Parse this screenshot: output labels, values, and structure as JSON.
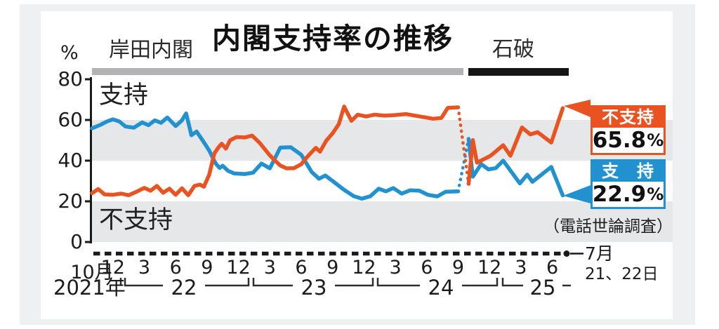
{
  "header": {
    "title": "内閣支持率の推移",
    "kishida_label": "岸田内閣",
    "ishiba_label": "石破"
  },
  "axes": {
    "unit_label": "%",
    "y_ticks": [
      "80",
      "60",
      "40",
      "20",
      "0"
    ],
    "x_month_labels": [
      {
        "text": "10月",
        "month": 0
      },
      {
        "text": "12",
        "month": 2
      },
      {
        "text": "3",
        "month": 5
      },
      {
        "text": "6",
        "month": 8
      },
      {
        "text": "9",
        "month": 11
      },
      {
        "text": "12",
        "month": 14
      },
      {
        "text": "3",
        "month": 17
      },
      {
        "text": "6",
        "month": 20
      },
      {
        "text": "9",
        "month": 23
      },
      {
        "text": "12",
        "month": 26
      },
      {
        "text": "3",
        "month": 29
      },
      {
        "text": "6",
        "month": 32
      },
      {
        "text": "9",
        "month": 35
      },
      {
        "text": "12",
        "month": 38
      },
      {
        "text": "3",
        "month": 41
      },
      {
        "text": "6",
        "month": 44
      }
    ],
    "year_labels": [
      {
        "text": "2021年"
      },
      {
        "text": "22"
      },
      {
        "text": "23"
      },
      {
        "text": "24"
      },
      {
        "text": "25"
      }
    ],
    "end_date_month": "7月",
    "end_date_days": "21、22日"
  },
  "annotations": {
    "approve_inline_label": "支持",
    "disapprove_inline_label": "不支持",
    "source_note": "（電話世論調査）",
    "disapprove_box": {
      "label": "不支持",
      "value": "65.8",
      "unit": "%"
    },
    "approve_box": {
      "label": "支　持",
      "value": "22.9",
      "unit": "%"
    }
  },
  "colors": {
    "approve": "#2191d0",
    "disapprove": "#e95322",
    "band": "#e6e7e9",
    "kishida_bar": "#b2b2b4",
    "ishiba_bar": "#161616",
    "axis": "#1a1a1a"
  },
  "chart_data": {
    "type": "line",
    "title": "内閣支持率の推移",
    "subtitle_source": "（電話世論調査）",
    "x_unit": "months since 2021-10 (0 = Oct 2021, 45 = Jul 2025, surveys roughly monthly)",
    "ylabel": "%",
    "ylim": [
      0,
      80
    ],
    "y_gridbands": [
      [
        40,
        60
      ],
      [
        0,
        20
      ]
    ],
    "cabinet_periods": [
      {
        "name": "岸田内閣",
        "from_month": 0,
        "to_month": 35.5
      },
      {
        "name": "石破",
        "from_month": 36,
        "to_month": 45
      }
    ],
    "final_values": {
      "不支持": 65.8,
      "支持": 22.9
    },
    "series": [
      {
        "name": "支持（岸田内閣）",
        "role": "approve",
        "segment": "kishida",
        "style": "solid",
        "color": "#2191d0",
        "points": [
          [
            0,
            55.9
          ],
          [
            0.8,
            57.6
          ],
          [
            1.4,
            59.2
          ],
          [
            2,
            60.3
          ],
          [
            2.6,
            59.3
          ],
          [
            3.2,
            56.8
          ],
          [
            4,
            56.2
          ],
          [
            4.8,
            58.8
          ],
          [
            5.4,
            57.4
          ],
          [
            6,
            59.8
          ],
          [
            6.6,
            58.6
          ],
          [
            7.2,
            61.2
          ],
          [
            8,
            57.0
          ],
          [
            8.6,
            59.8
          ],
          [
            9,
            63.2
          ],
          [
            9.5,
            52.5
          ],
          [
            10,
            54.3
          ],
          [
            10.6,
            49.8
          ],
          [
            11.2,
            45.0
          ],
          [
            11.8,
            38.8
          ],
          [
            12.2,
            36.4
          ],
          [
            12.5,
            37.5
          ],
          [
            13,
            35.0
          ],
          [
            13.6,
            33.7
          ],
          [
            14.6,
            33.4
          ],
          [
            15.4,
            34.1
          ],
          [
            16.2,
            38.6
          ],
          [
            17,
            36.2
          ],
          [
            18,
            46.4
          ],
          [
            19,
            46.6
          ],
          [
            20,
            42.9
          ],
          [
            21,
            34.4
          ],
          [
            21.7,
            31.1
          ],
          [
            22.3,
            32.7
          ],
          [
            23,
            30.0
          ],
          [
            24,
            26.0
          ],
          [
            25,
            22.6
          ],
          [
            25.8,
            21.3
          ],
          [
            26.6,
            22.5
          ],
          [
            27.4,
            26.2
          ],
          [
            28.1,
            24.9
          ],
          [
            28.8,
            26.5
          ],
          [
            29.6,
            23.8
          ],
          [
            30.4,
            25.4
          ],
          [
            31.3,
            25.2
          ],
          [
            32.1,
            23.2
          ],
          [
            33,
            22.4
          ],
          [
            33.8,
            24.7
          ],
          [
            35,
            24.9
          ]
        ]
      },
      {
        "name": "支持（政権交代）",
        "role": "approve",
        "segment": "transition",
        "style": "dotted",
        "color": "#2191d0",
        "points": [
          [
            35,
            24.9
          ],
          [
            36,
            50.7
          ]
        ]
      },
      {
        "name": "支持（石破内閣）",
        "role": "approve",
        "segment": "ishiba",
        "style": "solid",
        "color": "#2191d0",
        "points": [
          [
            36,
            50.7
          ],
          [
            36.4,
            32.1
          ],
          [
            37.2,
            38.3
          ],
          [
            37.9,
            35.7
          ],
          [
            38.6,
            36.3
          ],
          [
            39.3,
            40.0
          ],
          [
            40.9,
            28.8
          ],
          [
            41.6,
            33.1
          ],
          [
            42.1,
            29.6
          ],
          [
            43.9,
            36.9
          ],
          [
            45,
            22.9
          ]
        ]
      },
      {
        "name": "不支持（岸田内閣）",
        "role": "disapprove",
        "segment": "kishida",
        "style": "solid",
        "color": "#e95322",
        "points": [
          [
            0,
            24.0
          ],
          [
            0.6,
            26.0
          ],
          [
            1.2,
            23.4
          ],
          [
            2,
            23.2
          ],
          [
            2.8,
            23.8
          ],
          [
            3.5,
            23.0
          ],
          [
            4.2,
            24.6
          ],
          [
            5,
            26.6
          ],
          [
            5.6,
            25.2
          ],
          [
            6.2,
            27.6
          ],
          [
            6.8,
            24.2
          ],
          [
            7.4,
            26.2
          ],
          [
            8,
            23.2
          ],
          [
            8.6,
            26.4
          ],
          [
            9.2,
            23.0
          ],
          [
            9.8,
            27.6
          ],
          [
            10.3,
            28.2
          ],
          [
            10.7,
            27.2
          ],
          [
            11.2,
            33.0
          ],
          [
            11.7,
            43.6
          ],
          [
            12.1,
            46.6
          ],
          [
            12.4,
            48.3
          ],
          [
            12.8,
            45.9
          ],
          [
            13.2,
            50.0
          ],
          [
            13.8,
            51.6
          ],
          [
            14.6,
            51.4
          ],
          [
            15.3,
            52.3
          ],
          [
            16,
            48.9
          ],
          [
            17,
            42.6
          ],
          [
            17.5,
            40.0
          ],
          [
            18,
            37.6
          ],
          [
            18.6,
            36.2
          ],
          [
            19.3,
            36.3
          ],
          [
            20,
            38.2
          ],
          [
            20.5,
            41.4
          ],
          [
            21,
            44.2
          ],
          [
            21.4,
            46.3
          ],
          [
            21.8,
            44.4
          ],
          [
            22.4,
            49.9
          ],
          [
            23,
            53.4
          ],
          [
            23.6,
            58.0
          ],
          [
            24.1,
            66.6
          ],
          [
            24.8,
            59.6
          ],
          [
            25.4,
            62.6
          ],
          [
            26.2,
            61.7
          ],
          [
            27,
            62.6
          ],
          [
            28,
            62.1
          ],
          [
            29,
            62.4
          ],
          [
            30,
            62.9
          ],
          [
            31,
            62.0
          ],
          [
            31.8,
            61.3
          ],
          [
            32.6,
            60.6
          ],
          [
            33.4,
            61.0
          ],
          [
            34,
            65.9
          ],
          [
            35,
            66.2
          ]
        ]
      },
      {
        "name": "不支持（政権交代）",
        "role": "disapprove",
        "segment": "transition",
        "style": "dotted",
        "color": "#e95322",
        "points": [
          [
            35,
            66.2
          ],
          [
            36,
            28.6
          ]
        ]
      },
      {
        "name": "不支持（石破内閣）",
        "role": "disapprove",
        "segment": "ishiba",
        "style": "solid",
        "color": "#e95322",
        "points": [
          [
            36,
            28.6
          ],
          [
            36.4,
            50.1
          ],
          [
            36.8,
            39.0
          ],
          [
            38.1,
            42.4
          ],
          [
            39.3,
            47.6
          ],
          [
            40,
            42.4
          ],
          [
            41.1,
            56.3
          ],
          [
            41.9,
            52.9
          ],
          [
            42.6,
            54.0
          ],
          [
            43.9,
            48.9
          ],
          [
            45,
            65.8
          ]
        ]
      }
    ]
  }
}
